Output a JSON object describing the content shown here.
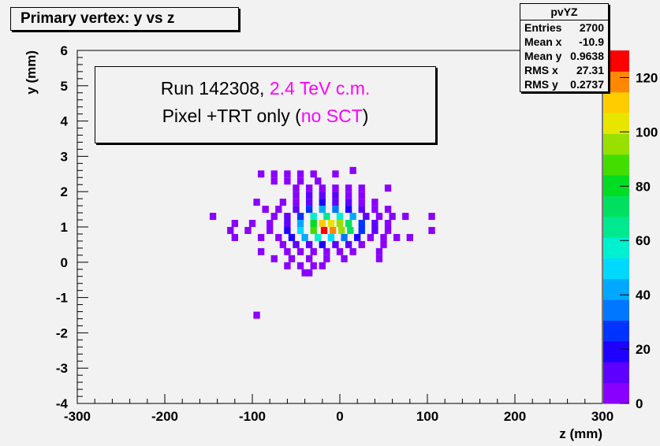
{
  "title": "Primary vertex: y vs z",
  "stats": {
    "name": "pvYZ",
    "rows": [
      {
        "label": "Entries",
        "value": "2700"
      },
      {
        "label": "Mean x",
        "value": "-10.9"
      },
      {
        "label": "Mean y",
        "value": "0.9638"
      },
      {
        "label": "RMS x",
        "value": "27.31"
      },
      {
        "label": "RMS y",
        "value": "0.2737"
      }
    ]
  },
  "annotation": {
    "line1_a": "Run 142308, ",
    "line1_b": "2.4 TeV c.m.",
    "line2_a": "Pixel +TRT only (",
    "line2_b": "no SCT",
    "line2_c": ")"
  },
  "colors": {
    "highlight": "#ff00ff",
    "frame_bg": "#f2f2f2"
  },
  "chart_data": {
    "type": "heatmap",
    "xlabel": "z (mm)",
    "ylabel": "y (mm)",
    "xlim": [
      -300,
      300
    ],
    "ylim": [
      -4,
      6
    ],
    "xticks": [
      "-300",
      "-200",
      "-100",
      "0",
      "100",
      "200",
      "300"
    ],
    "yticks": [
      "-4",
      "-3",
      "-2",
      "-1",
      "0",
      "1",
      "2",
      "3",
      "4",
      "5",
      "6"
    ],
    "zlim": [
      0,
      130
    ],
    "zticks": [
      "0",
      "20",
      "40",
      "60",
      "80",
      "100",
      "120"
    ],
    "bin_width": [
      7.5,
      0.2
    ],
    "palette": [
      "#8a00ff",
      "#5e00ff",
      "#1f00ff",
      "#0033ff",
      "#0077ff",
      "#00a8ff",
      "#00d8ff",
      "#00f0d0",
      "#00e890",
      "#00e060",
      "#00dd22",
      "#44dd00",
      "#99e000",
      "#e6e600",
      "#ffcc00",
      "#ff8800",
      "#ff0000"
    ],
    "bins": [
      [
        -90,
        2.5,
        2
      ],
      [
        -75,
        2.5,
        2
      ],
      [
        -60,
        2.5,
        2
      ],
      [
        -75,
        2.3,
        2
      ],
      [
        -45,
        2.3,
        2
      ],
      [
        -30,
        2.5,
        2
      ],
      [
        -25,
        2.3,
        2
      ],
      [
        -5,
        2.5,
        2
      ],
      [
        15,
        2.6,
        2
      ],
      [
        -60,
        2.3,
        3
      ],
      [
        -45,
        2.5,
        3
      ],
      [
        55,
        2.1,
        2
      ],
      [
        -50,
        2.1,
        4
      ],
      [
        -35,
        2.1,
        4
      ],
      [
        -20,
        2.1,
        4
      ],
      [
        -5,
        2.1,
        5
      ],
      [
        10,
        2.1,
        4
      ],
      [
        25,
        2.1,
        3
      ],
      [
        -50,
        1.9,
        5
      ],
      [
        -35,
        1.9,
        8
      ],
      [
        -20,
        1.9,
        9
      ],
      [
        -5,
        1.9,
        8
      ],
      [
        10,
        1.9,
        6
      ],
      [
        25,
        1.9,
        4
      ],
      [
        -95,
        1.7,
        3
      ],
      [
        -65,
        1.7,
        4
      ],
      [
        -50,
        1.7,
        6
      ],
      [
        -35,
        1.7,
        12
      ],
      [
        -20,
        1.7,
        18
      ],
      [
        -5,
        1.7,
        15
      ],
      [
        10,
        1.7,
        10
      ],
      [
        25,
        1.7,
        5
      ],
      [
        40,
        1.7,
        3
      ],
      [
        -145,
        1.3,
        2
      ],
      [
        -85,
        1.5,
        3
      ],
      [
        -70,
        1.5,
        5
      ],
      [
        -60,
        1.3,
        8
      ],
      [
        -50,
        1.5,
        12
      ],
      [
        -35,
        1.5,
        30
      ],
      [
        -20,
        1.5,
        40
      ],
      [
        -5,
        1.5,
        35
      ],
      [
        10,
        1.5,
        22
      ],
      [
        25,
        1.5,
        9
      ],
      [
        40,
        1.5,
        4
      ],
      [
        55,
        1.5,
        3
      ],
      [
        -75,
        1.3,
        5
      ],
      [
        -45,
        1.3,
        28
      ],
      [
        -30,
        1.3,
        55
      ],
      [
        -15,
        1.3,
        68
      ],
      [
        0,
        1.3,
        60
      ],
      [
        15,
        1.3,
        40
      ],
      [
        30,
        1.3,
        14
      ],
      [
        45,
        1.3,
        5
      ],
      [
        60,
        1.3,
        3
      ],
      [
        75,
        1.3,
        3
      ],
      [
        105,
        1.3,
        2
      ],
      [
        -120,
        1.1,
        2
      ],
      [
        -100,
        1.1,
        3
      ],
      [
        -80,
        1.1,
        6
      ],
      [
        -60,
        1.1,
        14
      ],
      [
        -45,
        1.1,
        45
      ],
      [
        -30,
        1.1,
        80
      ],
      [
        -20,
        1.1,
        110
      ],
      [
        -10,
        1.1,
        100
      ],
      [
        0,
        1.1,
        95
      ],
      [
        10,
        1.1,
        70
      ],
      [
        25,
        1.1,
        25
      ],
      [
        40,
        1.1,
        8
      ],
      [
        55,
        1.1,
        3
      ],
      [
        -125,
        0.9,
        2
      ],
      [
        -105,
        0.9,
        3
      ],
      [
        -80,
        0.9,
        7
      ],
      [
        -60,
        0.9,
        16
      ],
      [
        -45,
        0.9,
        50
      ],
      [
        -30,
        0.9,
        85
      ],
      [
        -18,
        0.9,
        130
      ],
      [
        -8,
        0.9,
        115
      ],
      [
        2,
        0.9,
        95
      ],
      [
        12,
        0.9,
        72
      ],
      [
        25,
        0.9,
        25
      ],
      [
        40,
        0.9,
        9
      ],
      [
        55,
        0.9,
        3
      ],
      [
        105,
        0.9,
        2
      ],
      [
        -120,
        0.7,
        2
      ],
      [
        -90,
        0.7,
        3
      ],
      [
        -70,
        0.7,
        6
      ],
      [
        -55,
        0.7,
        18
      ],
      [
        -40,
        0.7,
        40
      ],
      [
        -25,
        0.7,
        55
      ],
      [
        -10,
        0.7,
        50
      ],
      [
        5,
        0.7,
        36
      ],
      [
        20,
        0.7,
        16
      ],
      [
        35,
        0.7,
        6
      ],
      [
        50,
        0.7,
        3
      ],
      [
        65,
        0.7,
        2
      ],
      [
        80,
        0.7,
        2
      ],
      [
        -65,
        0.5,
        4
      ],
      [
        -50,
        0.5,
        8
      ],
      [
        -35,
        0.5,
        14
      ],
      [
        -20,
        0.5,
        16
      ],
      [
        -5,
        0.5,
        12
      ],
      [
        10,
        0.5,
        8
      ],
      [
        25,
        0.5,
        4
      ],
      [
        50,
        0.5,
        2
      ],
      [
        -90,
        0.3,
        2
      ],
      [
        -60,
        0.3,
        4
      ],
      [
        -45,
        0.3,
        6
      ],
      [
        -30,
        0.3,
        7
      ],
      [
        -15,
        0.3,
        6
      ],
      [
        0,
        0.3,
        4
      ],
      [
        15,
        0.3,
        3
      ],
      [
        45,
        0.3,
        2
      ],
      [
        -55,
        0.1,
        3
      ],
      [
        -35,
        0.1,
        3
      ],
      [
        -15,
        0.1,
        3
      ],
      [
        5,
        0.1,
        2
      ],
      [
        -75,
        0.1,
        2
      ],
      [
        -45,
        -0.1,
        2
      ],
      [
        -30,
        -0.1,
        2
      ],
      [
        -60,
        -0.1,
        2
      ],
      [
        -20,
        -0.1,
        2
      ],
      [
        45,
        0.1,
        2
      ],
      [
        -40,
        -0.3,
        2
      ],
      [
        -35,
        -0.3,
        2
      ],
      [
        -95,
        -1.5,
        2
      ]
    ]
  }
}
